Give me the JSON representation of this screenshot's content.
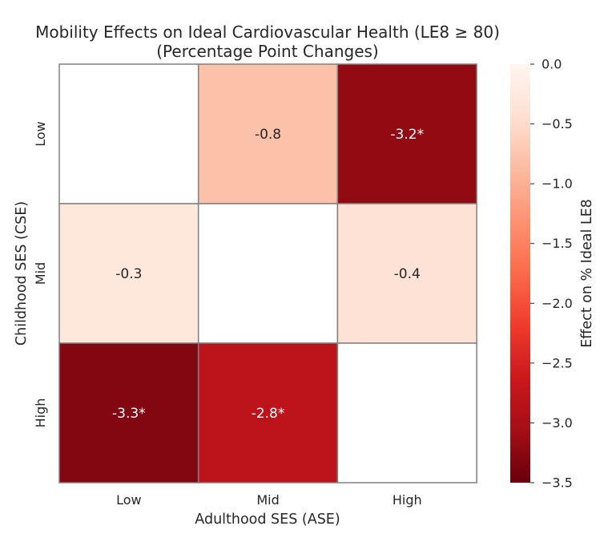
{
  "chart_data": {
    "type": "heatmap",
    "title": "Mobility Effects on Ideal Cardiovascular Health (LE8 ≥ 80)",
    "subtitle": "(Percentage Point Changes)",
    "xlabel": "Adulthood SES (ASE)",
    "ylabel": "Childhood SES (CSE)",
    "x_categories": [
      "Low",
      "Mid",
      "High"
    ],
    "y_categories": [
      "Low",
      "Mid",
      "High"
    ],
    "values": [
      [
        null,
        -0.8,
        -3.2
      ],
      [
        -0.3,
        null,
        -0.4
      ],
      [
        -3.3,
        -2.8,
        null
      ]
    ],
    "cell_labels": [
      [
        "",
        "-0.8",
        "-3.2*"
      ],
      [
        "-0.3",
        "",
        "-0.4"
      ],
      [
        "-3.3*",
        "-2.8*",
        ""
      ]
    ],
    "colorbar": {
      "label": "Effect on % Ideal LE8",
      "vmin": -3.5,
      "vmax": 0.0,
      "ticks": [
        0.0,
        -0.5,
        -1.0,
        -1.5,
        -2.0,
        -2.5,
        -3.0,
        -3.5
      ],
      "tick_labels": [
        "0.0",
        "−0.5",
        "−1.0",
        "−1.5",
        "−2.0",
        "−2.5",
        "−3.0",
        "−3.5"
      ],
      "colormap": "Reds_r"
    },
    "colors": {
      "text_dark": "#262626",
      "text_light": "#ffffff",
      "grid_line": "#808080"
    }
  }
}
